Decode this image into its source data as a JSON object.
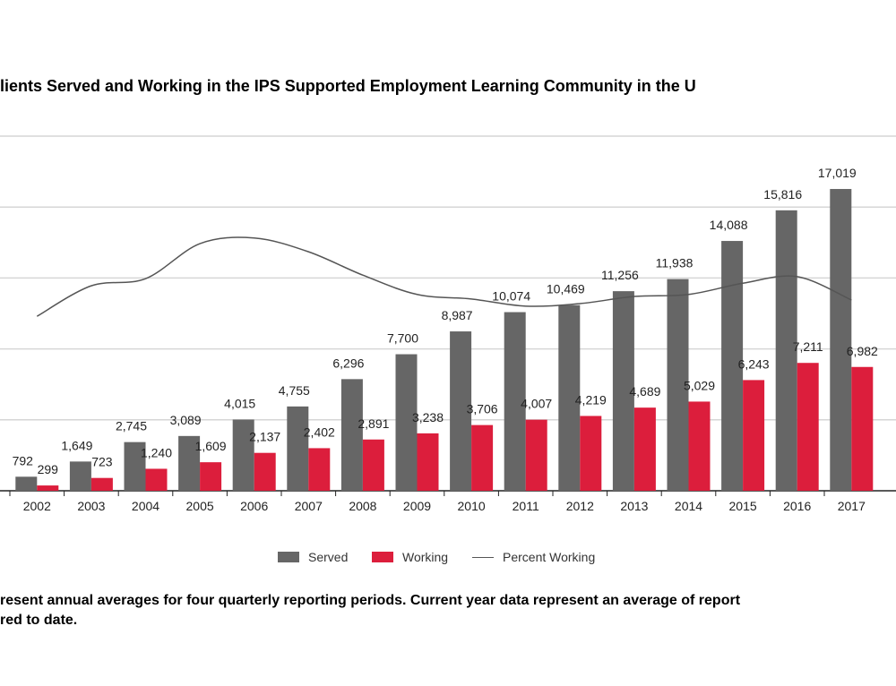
{
  "chart_data": {
    "type": "bar",
    "title": "lients Served and Working in the IPS Supported Employment Learning Community in the U",
    "categories": [
      "2002",
      "2003",
      "2004",
      "2005",
      "2006",
      "2007",
      "2008",
      "2009",
      "2010",
      "2011",
      "2012",
      "2013",
      "2014",
      "2015",
      "2016",
      "2017"
    ],
    "series": [
      {
        "name": "Served",
        "type": "bar",
        "color": "#666666",
        "values": [
          792,
          1649,
          2745,
          3089,
          4015,
          4755,
          6296,
          7700,
          8987,
          10074,
          10469,
          11256,
          11938,
          14088,
          15816,
          17019
        ],
        "labels": [
          "792",
          "1,649",
          "2,745",
          "3,089",
          "4,015",
          "4,755",
          "6,296",
          "7,700",
          "8,987",
          "10,074",
          "10,469",
          "11,256",
          "11,938",
          "14,088",
          "15,816",
          "17,019"
        ]
      },
      {
        "name": "Working",
        "type": "bar",
        "color": "#dc1e3c",
        "values": [
          299,
          723,
          1240,
          1609,
          2137,
          2402,
          2891,
          3238,
          3706,
          4007,
          4219,
          4689,
          5029,
          6243,
          7211,
          6982
        ],
        "labels": [
          "299",
          "723",
          "1,240",
          "1,609",
          "2,137",
          "2,402",
          "2,891",
          "3,238",
          "3,706",
          "4,007",
          "4,219",
          "4,689",
          "5,029",
          "6,243",
          "7,211",
          "6,982"
        ]
      },
      {
        "name": "Percent Working",
        "type": "line",
        "color": "#555555",
        "values": [
          37.8,
          43.8,
          45.2,
          52.1,
          53.2,
          50.5,
          45.9,
          42.1,
          41.2,
          39.8,
          40.3,
          41.7,
          42.1,
          44.3,
          45.6,
          41.0
        ]
      }
    ],
    "ylim": [
      0,
      20000
    ],
    "grid": true,
    "legend": "bottom"
  },
  "legend": {
    "served": "Served",
    "working": "Working",
    "percent": "Percent Working"
  },
  "footnote": {
    "line1": "resent annual averages for four quarterly reporting periods. Current year data represent an average of report",
    "line2": "red to date."
  }
}
